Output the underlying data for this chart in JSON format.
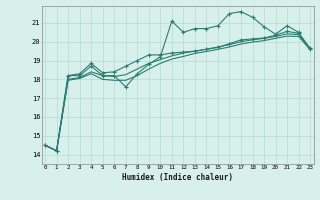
{
  "x": [
    0,
    1,
    2,
    3,
    4,
    5,
    6,
    7,
    8,
    9,
    10,
    11,
    12,
    13,
    14,
    15,
    16,
    17,
    18,
    19,
    20,
    21,
    22,
    23
  ],
  "line1": [
    14.5,
    14.2,
    18.2,
    18.2,
    18.7,
    18.2,
    18.2,
    17.6,
    18.3,
    18.8,
    19.2,
    21.1,
    20.5,
    20.7,
    20.7,
    20.85,
    21.5,
    21.6,
    21.3,
    20.8,
    20.4,
    20.85,
    20.5,
    19.6
  ],
  "line2": [
    14.5,
    14.2,
    18.2,
    18.3,
    18.85,
    18.35,
    18.4,
    18.7,
    19.0,
    19.3,
    19.3,
    19.4,
    19.45,
    19.5,
    19.6,
    19.7,
    19.9,
    20.1,
    20.15,
    20.2,
    20.35,
    20.55,
    20.45,
    19.65
  ],
  "line3": [
    14.5,
    14.2,
    18.0,
    18.1,
    18.4,
    18.2,
    18.15,
    18.25,
    18.55,
    18.85,
    19.05,
    19.25,
    19.4,
    19.5,
    19.6,
    19.72,
    19.85,
    20.0,
    20.1,
    20.18,
    20.28,
    20.42,
    20.38,
    19.58
  ],
  "line4": [
    14.5,
    14.2,
    17.95,
    18.05,
    18.3,
    18.0,
    17.95,
    17.95,
    18.2,
    18.55,
    18.85,
    19.08,
    19.22,
    19.38,
    19.48,
    19.6,
    19.72,
    19.88,
    19.98,
    20.06,
    20.18,
    20.3,
    20.28,
    19.58
  ],
  "color": "#2a7d70",
  "bg_color": "#d8f0ec",
  "grid_color": "#b8d8d4",
  "xlabel": "Humidex (Indice chaleur)",
  "ylim_min": 13.5,
  "ylim_max": 21.9,
  "xlim_min": -0.3,
  "xlim_max": 23.3,
  "yticks": [
    14,
    15,
    16,
    17,
    18,
    19,
    20,
    21
  ],
  "xticks": [
    0,
    1,
    2,
    3,
    4,
    5,
    6,
    7,
    8,
    9,
    10,
    11,
    12,
    13,
    14,
    15,
    16,
    17,
    18,
    19,
    20,
    21,
    22,
    23
  ]
}
